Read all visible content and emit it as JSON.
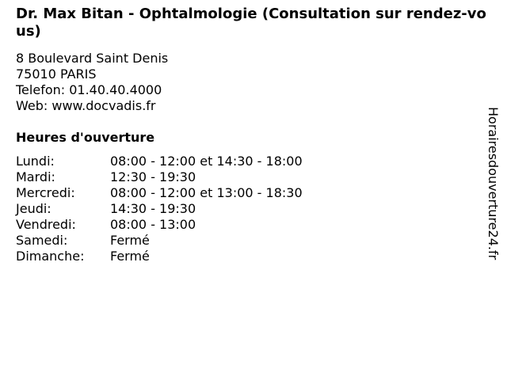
{
  "title": "Dr. Max Bitan - Ophtalmologie (Consultation sur rendez-vous)",
  "address": {
    "street": "8 Boulevard Saint Denis",
    "city": "75010 PARIS",
    "phone": "Telefon: 01.40.40.4000",
    "web": "Web: www.docvadis.fr"
  },
  "hours_heading": "Heures d'ouverture",
  "hours": [
    {
      "day": "Lundi:",
      "time": "08:00 - 12:00 et 14:30 - 18:00"
    },
    {
      "day": "Mardi:",
      "time": "12:30 - 19:30"
    },
    {
      "day": "Mercredi:",
      "time": "08:00 - 12:00 et 13:00 - 18:30"
    },
    {
      "day": "Jeudi:",
      "time": "14:30 - 19:30"
    },
    {
      "day": "Vendredi:",
      "time": "08:00 - 13:00"
    },
    {
      "day": "Samedi:",
      "time": "Fermé"
    },
    {
      "day": "Dimanche:",
      "time": "Fermé"
    }
  ],
  "watermark": "Horairesdouverture24.fr"
}
